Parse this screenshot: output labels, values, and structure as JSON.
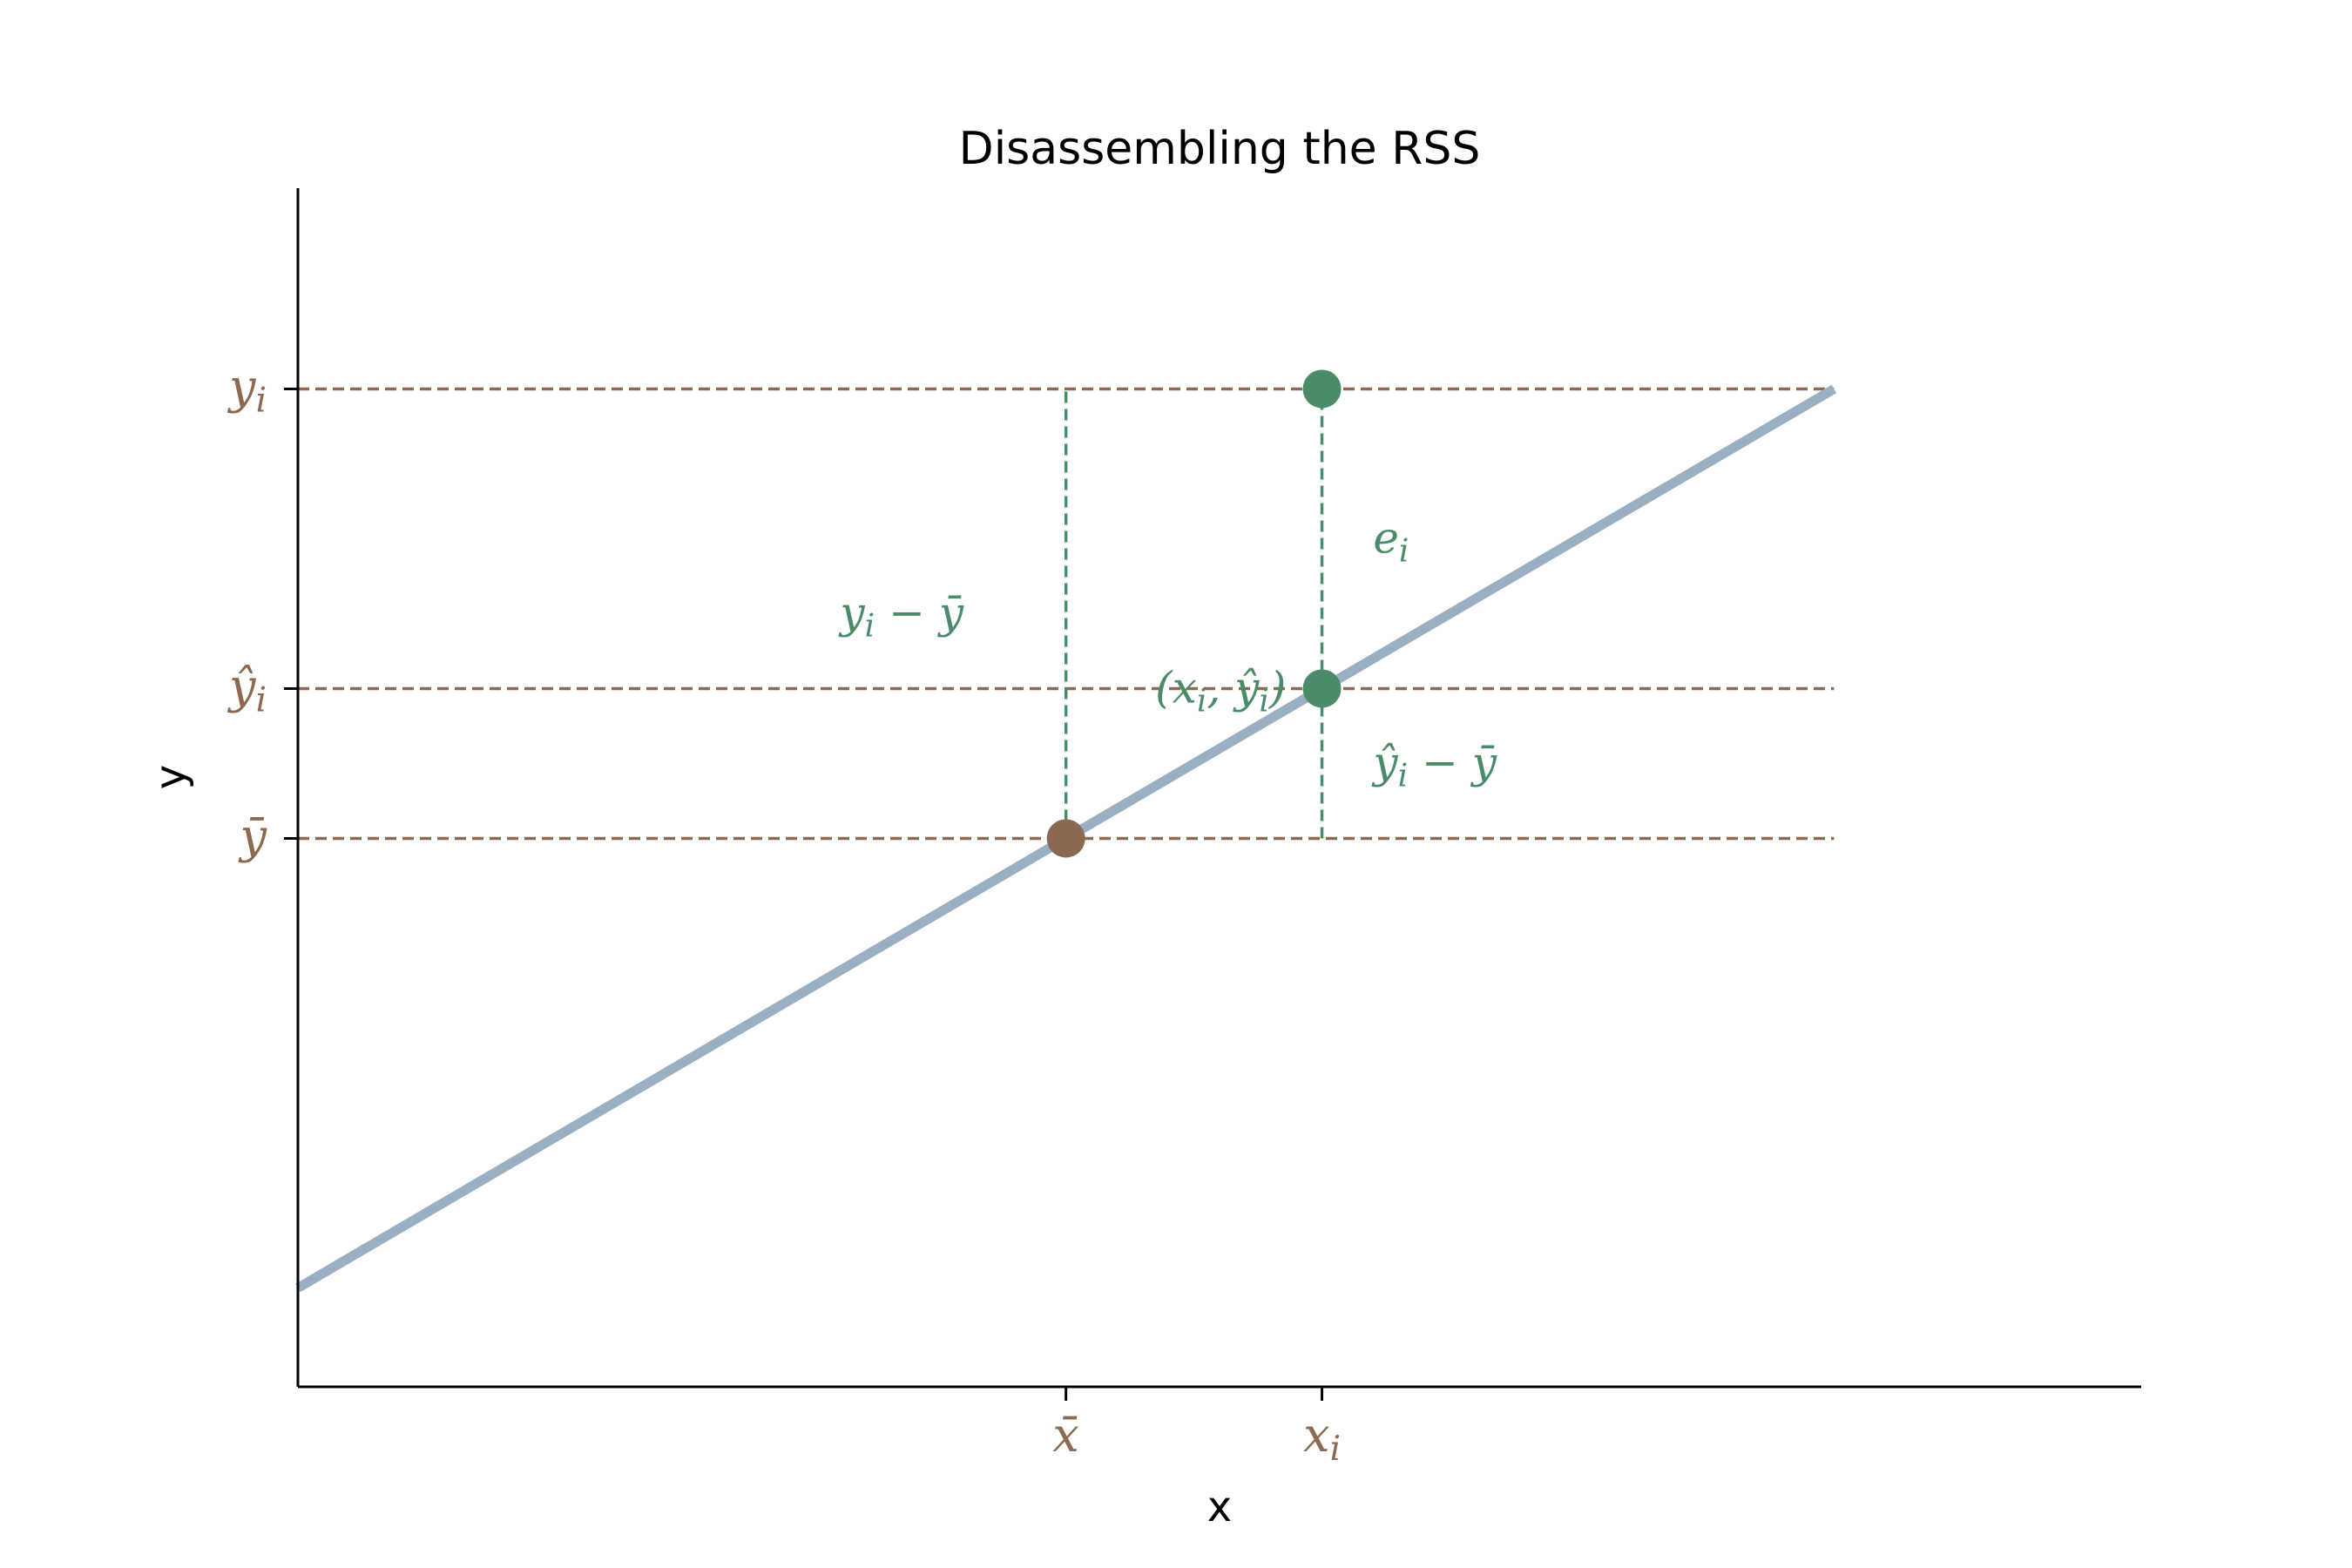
{
  "chart_data": {
    "type": "line",
    "title": "Disassembling the RSS",
    "xlabel": "x",
    "ylabel": "y",
    "xlim": [
      0,
      3.6
    ],
    "ylim": [
      0,
      4
    ],
    "grid": false,
    "legend": "none",
    "x_ticks": [
      {
        "value": 1.5,
        "label": "x̄"
      },
      {
        "value": 2.0,
        "label": "x_i"
      }
    ],
    "y_ticks": [
      {
        "value": 1.83,
        "label": "ȳ"
      },
      {
        "value": 2.33,
        "label": "ŷ_i"
      },
      {
        "value": 3.33,
        "label": "y_i"
      }
    ],
    "regression_line": {
      "x": [
        0,
        3.0
      ],
      "y": [
        0.33,
        3.33
      ]
    },
    "points": [
      {
        "x": 1.5,
        "y": 1.83,
        "label": "mean-point"
      },
      {
        "x": 2.0,
        "y": 2.33,
        "label": "fitted-point"
      },
      {
        "x": 2.0,
        "y": 3.33,
        "label": "observed-point"
      }
    ],
    "horizontal_reference_lines": [
      {
        "y": 3.33,
        "x_range": [
          0,
          3.0
        ]
      },
      {
        "y": 2.33,
        "x_range": [
          0,
          3.0
        ]
      },
      {
        "y": 1.83,
        "x_range": [
          0,
          3.0
        ]
      }
    ],
    "vertical_segments": [
      {
        "x": 1.5,
        "y_range": [
          1.83,
          3.33
        ],
        "name": "total-deviation"
      },
      {
        "x": 2.0,
        "y_range": [
          2.33,
          3.33
        ],
        "name": "residual"
      },
      {
        "x": 2.0,
        "y_range": [
          1.83,
          2.33
        ],
        "name": "explained-deviation"
      }
    ],
    "annotations": [
      {
        "name": "total-deviation-label",
        "text": "y_i − ȳ",
        "x": 1.3,
        "y": 2.58,
        "anchor": "end"
      },
      {
        "name": "residual-label",
        "text": "e_i",
        "x": 2.1,
        "y": 2.83,
        "anchor": "start"
      },
      {
        "name": "explained-label",
        "text": "ŷ_i − ȳ",
        "x": 2.1,
        "y": 2.08,
        "anchor": "start"
      },
      {
        "name": "fitted-point-label",
        "text": "(x_i, ŷ_i)",
        "x": 1.93,
        "y": 2.33,
        "anchor": "end"
      }
    ],
    "colors": {
      "line": "#9aafc1",
      "brown": "#8b6a51",
      "green": "#4a8c68",
      "axis": "#000000"
    }
  }
}
